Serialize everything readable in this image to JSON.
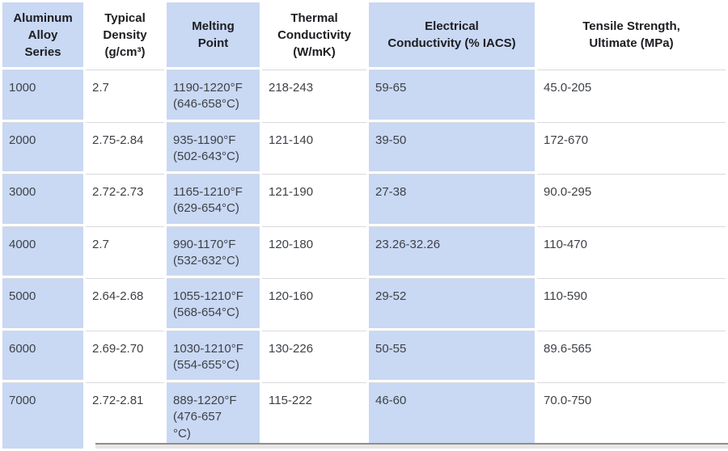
{
  "table": {
    "columns": [
      {
        "label": "Aluminum\nAlloy\nSeries",
        "shaded": true
      },
      {
        "label": "Typical\nDensity\n(g/cm³)",
        "shaded": false
      },
      {
        "label": "Melting\nPoint",
        "shaded": true
      },
      {
        "label": "Thermal\nConductivity\n(W/mK)",
        "shaded": false
      },
      {
        "label": "Electrical\nConductivity (% IACS)",
        "shaded": true
      },
      {
        "label": "Tensile Strength,\nUltimate (MPa)",
        "shaded": false
      }
    ],
    "rows": [
      [
        "1000",
        "2.7",
        "1190-1220°F\n(646-658°C)",
        "218-243",
        "59-65",
        "45.0-205"
      ],
      [
        "2000",
        "2.75-2.84",
        "935-1190°F\n(502-643°C)",
        "121-140",
        "39-50",
        "172-670"
      ],
      [
        "3000",
        "2.72-2.73",
        "1165-1210°F\n(629-654°C)",
        "121-190",
        "27-38",
        "90.0-295"
      ],
      [
        "4000",
        "2.7",
        "990-1170°F\n(532-632°C)",
        "120-180",
        "23.26-32.26",
        "110-470"
      ],
      [
        "5000",
        "2.64-2.68",
        "1055-1210°F\n(568-654°C)",
        "120-160",
        "29-52",
        "110-590"
      ],
      [
        "6000",
        "2.69-2.70",
        "1030-1210°F\n(554-655°C)",
        "130-226",
        "50-55",
        "89.6-565"
      ],
      [
        "7000",
        "2.72-2.81",
        "889-1220°F\n(476-657\n°C)",
        "115-222",
        "46-60",
        "70.0-750"
      ]
    ]
  },
  "colors": {
    "shaded_column": "#c9d8f3",
    "row_divider": "#d7dade",
    "header_text": "#1c1d21",
    "body_text": "#3e4247",
    "bottom_strip": "#e9e6e2"
  }
}
